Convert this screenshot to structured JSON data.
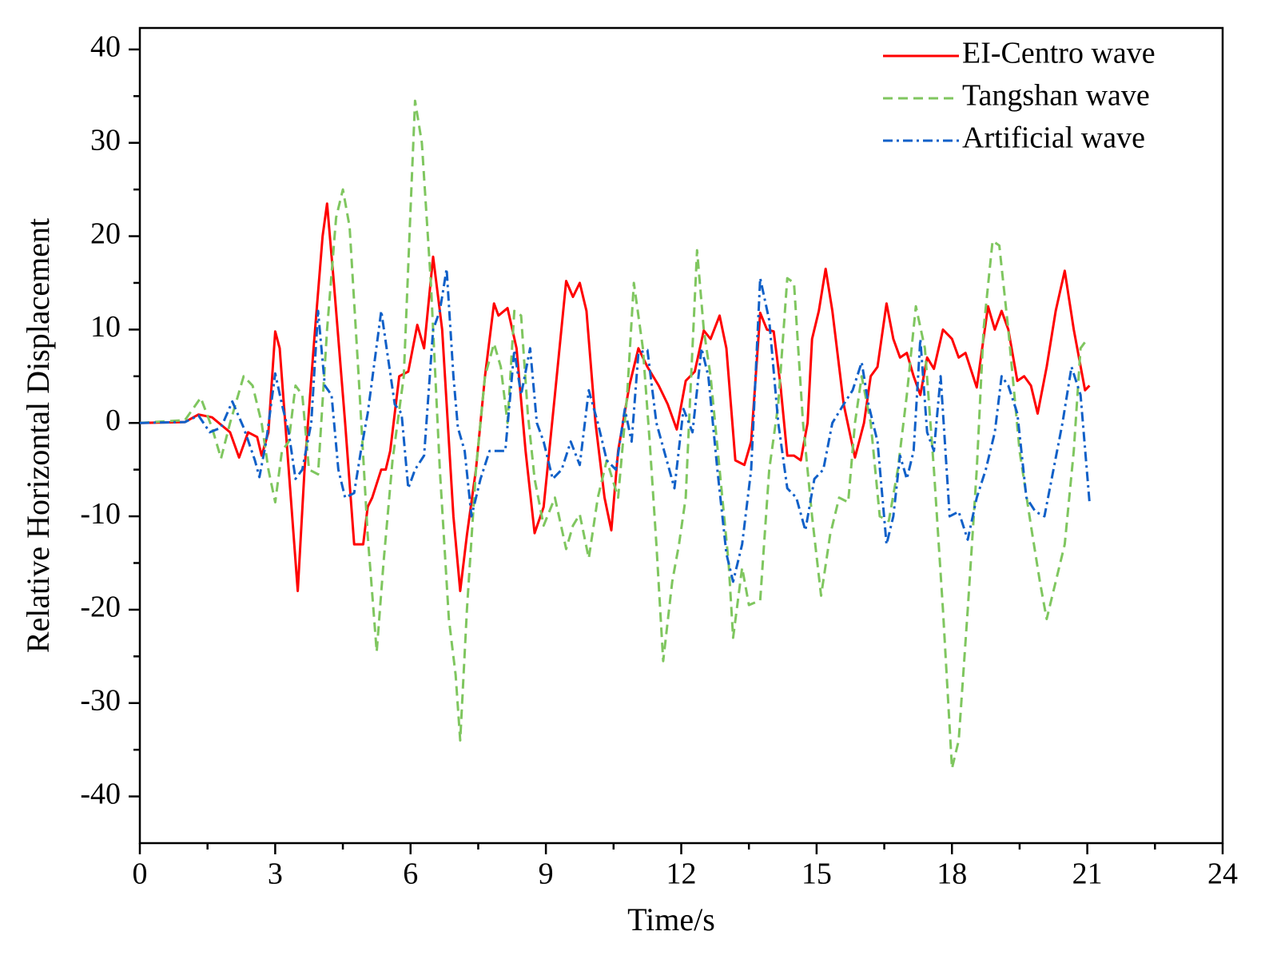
{
  "chart_data": {
    "type": "line",
    "xlabel": "Time/s",
    "ylabel": "Relative Horizontal Displacement",
    "xlim": [
      0,
      24
    ],
    "xticks": [
      0,
      3,
      6,
      9,
      12,
      15,
      18,
      21,
      24
    ],
    "xminorticks": [
      1.5,
      4.5,
      7.5,
      10.5,
      13.5,
      16.5,
      19.5,
      22.5
    ],
    "ylim": [
      -45,
      42.3
    ],
    "yticks": [
      -40,
      -30,
      -20,
      -10,
      0,
      10,
      20,
      30,
      40
    ],
    "yminorticks": [
      -35,
      -25,
      -15,
      -5,
      5,
      15,
      25,
      35
    ],
    "legend": "upper right",
    "series": [
      {
        "name": "EI-Centro wave",
        "color": "#ff0000",
        "style": "solid",
        "x": [
          0,
          1,
          1.3,
          1.6,
          2.0,
          2.2,
          2.4,
          2.6,
          2.7,
          2.85,
          3.0,
          3.1,
          3.3,
          3.5,
          3.65,
          3.85,
          4.05,
          4.15,
          4.3,
          4.55,
          4.75,
          4.95,
          5.05,
          5.15,
          5.35,
          5.45,
          5.55,
          5.75,
          5.95,
          6.15,
          6.3,
          6.5,
          6.7,
          6.95,
          7.1,
          7.25,
          7.45,
          7.65,
          7.85,
          7.95,
          8.15,
          8.35,
          8.55,
          8.75,
          8.95,
          9.2,
          9.45,
          9.6,
          9.75,
          9.9,
          10.1,
          10.3,
          10.45,
          10.6,
          10.85,
          11.05,
          11.25,
          11.5,
          11.7,
          11.9,
          12.1,
          12.3,
          12.5,
          12.65,
          12.85,
          13.0,
          13.2,
          13.4,
          13.55,
          13.75,
          13.9,
          14.05,
          14.2,
          14.35,
          14.5,
          14.65,
          14.8,
          14.9,
          15.05,
          15.2,
          15.35,
          15.6,
          15.85,
          16.05,
          16.2,
          16.35,
          16.55,
          16.7,
          16.85,
          17.0,
          17.15,
          17.3,
          17.45,
          17.6,
          17.8,
          18.0,
          18.15,
          18.3,
          18.55,
          18.8,
          18.95,
          19.1,
          19.25,
          19.45,
          19.6,
          19.75,
          19.9,
          20.1,
          20.3,
          20.5,
          20.7,
          20.95,
          21.05
        ],
        "values": [
          0,
          0.1,
          0.9,
          0.6,
          -1,
          -3.7,
          -1,
          -1.5,
          -3.5,
          -1,
          9.8,
          8,
          -5,
          -18,
          -5,
          8,
          20,
          23.5,
          15,
          0,
          -13,
          -13,
          -9,
          -8,
          -5,
          -5,
          -3,
          5,
          5.5,
          10.5,
          8,
          17.8,
          10,
          -10,
          -18,
          -12,
          -5,
          5,
          12.8,
          11.5,
          12.3,
          8,
          -3,
          -11.8,
          -9,
          3,
          15.2,
          13.5,
          15,
          12,
          0,
          -8,
          -11.5,
          -3,
          4,
          8,
          6,
          4,
          2,
          -0.7,
          4.5,
          5.5,
          9.9,
          9,
          11.5,
          8,
          -4,
          -4.5,
          -2,
          11.8,
          10,
          9.8,
          4,
          -3.5,
          -3.5,
          -4,
          0,
          9,
          12,
          16.5,
          12,
          2,
          -3.7,
          0,
          5,
          6,
          12.8,
          9,
          7,
          7.5,
          5,
          3,
          7,
          5.8,
          10,
          9,
          7,
          7.5,
          3.8,
          12.5,
          10,
          12,
          10,
          4.5,
          5,
          4,
          1,
          6,
          12,
          16.3,
          10,
          3.5,
          4
        ]
      },
      {
        "name": "Tangshan wave",
        "color": "#7fc65f",
        "style": "dashed",
        "x": [
          0,
          1,
          1.35,
          1.6,
          1.8,
          2.0,
          2.3,
          2.5,
          2.7,
          2.85,
          3.0,
          3.15,
          3.3,
          3.45,
          3.6,
          3.75,
          3.95,
          4.15,
          4.35,
          4.5,
          4.65,
          4.85,
          5.05,
          5.25,
          5.4,
          5.6,
          5.85,
          6.0,
          6.1,
          6.25,
          6.45,
          6.65,
          6.85,
          7.0,
          7.1,
          7.25,
          7.45,
          7.65,
          7.85,
          8.0,
          8.15,
          8.3,
          8.45,
          8.6,
          8.75,
          8.95,
          9.2,
          9.45,
          9.6,
          9.75,
          9.95,
          10.15,
          10.35,
          10.6,
          10.8,
          10.95,
          11.15,
          11.3,
          11.45,
          11.6,
          11.8,
          11.95,
          12.1,
          12.2,
          12.35,
          12.5,
          12.65,
          12.85,
          13.05,
          13.15,
          13.35,
          13.5,
          13.75,
          13.95,
          14.15,
          14.35,
          14.5,
          14.7,
          14.9,
          15.1,
          15.3,
          15.5,
          15.7,
          15.85,
          16.0,
          16.2,
          16.4,
          16.6,
          16.8,
          17.0,
          17.2,
          17.4,
          17.6,
          17.8,
          18.0,
          18.15,
          18.35,
          18.55,
          18.7,
          18.9,
          19.05,
          19.25,
          19.5,
          19.75,
          19.95,
          20.1,
          20.3,
          20.5,
          20.7,
          20.85,
          21.0
        ],
        "values": [
          0,
          0.3,
          2.7,
          -0.5,
          -3.8,
          0,
          5,
          4,
          0,
          -5,
          -8.5,
          -3,
          -2,
          4,
          3,
          -5,
          -5.5,
          10,
          22,
          25,
          21,
          5,
          -12,
          -24.5,
          -15,
          -4,
          5,
          23,
          34.5,
          30,
          15,
          -5,
          -21,
          -27,
          -34,
          -20,
          -5,
          5,
          8.5,
          6,
          0,
          12,
          11.5,
          1,
          -6,
          -11,
          -8,
          -13.5,
          -11,
          -9.8,
          -14.5,
          -8,
          -4,
          -8,
          3,
          15,
          8,
          -2,
          -13,
          -25.5,
          -17,
          -13,
          -8,
          3,
          18.5,
          10,
          5,
          -5,
          -15,
          -23,
          -15.5,
          -19.5,
          -19,
          -5,
          2,
          15.5,
          15,
          0,
          -10,
          -18.5,
          -12,
          -8,
          -8.5,
          0,
          5,
          0,
          -10,
          -10.5,
          -5,
          3,
          12.5,
          8,
          -5,
          -20,
          -37,
          -34,
          -20,
          -5,
          10,
          19.5,
          19,
          10,
          -3,
          -11,
          -17,
          -21,
          -17,
          -13,
          -3,
          8,
          9
        ]
      },
      {
        "name": "Artificial wave",
        "color": "#1060c8",
        "style": "dashdot",
        "x": [
          0,
          1,
          1.3,
          1.55,
          1.8,
          2.05,
          2.3,
          2.55,
          2.65,
          2.8,
          3.0,
          3.15,
          3.3,
          3.45,
          3.6,
          3.8,
          3.95,
          4.1,
          4.25,
          4.4,
          4.55,
          4.75,
          4.9,
          5.05,
          5.2,
          5.35,
          5.5,
          5.65,
          5.8,
          5.95,
          6.1,
          6.3,
          6.5,
          6.65,
          6.8,
          6.95,
          7.05,
          7.2,
          7.35,
          7.55,
          7.75,
          7.95,
          8.1,
          8.3,
          8.45,
          8.65,
          8.8,
          8.95,
          9.15,
          9.35,
          9.55,
          9.75,
          9.95,
          10.15,
          10.35,
          10.55,
          10.75,
          10.9,
          11.05,
          11.25,
          11.45,
          11.65,
          11.85,
          12.05,
          12.25,
          12.45,
          12.6,
          12.8,
          13.0,
          13.15,
          13.35,
          13.55,
          13.75,
          13.95,
          14.15,
          14.35,
          14.55,
          14.75,
          14.95,
          15.15,
          15.35,
          15.6,
          15.8,
          16.0,
          16.15,
          16.35,
          16.55,
          16.7,
          16.85,
          17.0,
          17.15,
          17.3,
          17.45,
          17.6,
          17.75,
          17.95,
          18.15,
          18.35,
          18.55,
          18.75,
          18.95,
          19.1,
          19.25,
          19.45,
          19.65,
          19.85,
          20.05,
          20.25,
          20.45,
          20.65,
          20.85,
          21.05
        ],
        "values": [
          0,
          0.1,
          0.8,
          -1,
          -0.5,
          2.3,
          -0.5,
          -4,
          -5.8,
          -2,
          5.3,
          2,
          -1,
          -6,
          -5,
          0,
          12,
          4,
          3,
          -5,
          -8,
          -7.5,
          -3,
          1,
          6.5,
          12,
          7,
          2,
          1,
          -7,
          -5,
          -3.5,
          10,
          12,
          16.5,
          5,
          -0.5,
          -3,
          -10,
          -6,
          -3,
          -3,
          -3,
          7.8,
          3,
          8,
          0,
          -2,
          -6,
          -5,
          -2,
          -4.5,
          3.5,
          0,
          -4,
          -5,
          1.5,
          -2,
          7.5,
          7.8,
          0,
          -3.5,
          -7,
          1.5,
          -1,
          8,
          5,
          -5,
          -14,
          -17,
          -13,
          -5,
          15.5,
          11,
          0,
          -7,
          -8,
          -11.5,
          -6,
          -5,
          0,
          2,
          3.5,
          6.5,
          2,
          -2,
          -13,
          -10,
          -3.5,
          -6,
          -3,
          9,
          -1,
          -3,
          5,
          -10,
          -9.5,
          -12.5,
          -8,
          -5,
          -1,
          5,
          4,
          1,
          -8,
          -9.5,
          -10,
          -5,
          0,
          6,
          3,
          -8.5
        ]
      }
    ]
  }
}
